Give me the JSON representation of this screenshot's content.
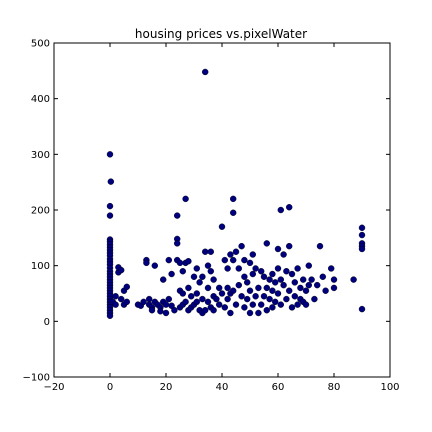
{
  "chart_data": {
    "type": "scatter",
    "title": "housing prices vs.pixelWater",
    "xlabel": "",
    "ylabel": "",
    "xlim": [
      -20,
      100
    ],
    "ylim": [
      -100,
      500
    ],
    "xticks": [
      -20,
      0,
      20,
      40,
      60,
      80,
      100
    ],
    "yticks": [
      -100,
      0,
      100,
      200,
      300,
      400,
      500
    ],
    "grid": false,
    "marker_color": "#00007f",
    "series": [
      {
        "name": "",
        "points": [
          [
            0,
            300
          ],
          [
            0.3,
            251
          ],
          [
            0,
            207
          ],
          [
            0,
            190
          ],
          [
            0,
            147
          ],
          [
            0,
            143
          ],
          [
            0,
            138
          ],
          [
            0,
            133
          ],
          [
            0,
            128
          ],
          [
            0,
            123
          ],
          [
            0,
            118
          ],
          [
            0,
            112
          ],
          [
            0,
            107
          ],
          [
            0,
            102
          ],
          [
            0,
            96
          ],
          [
            0,
            90
          ],
          [
            0,
            85
          ],
          [
            0,
            80
          ],
          [
            0,
            75
          ],
          [
            0,
            70
          ],
          [
            0,
            65
          ],
          [
            0,
            60
          ],
          [
            0,
            55
          ],
          [
            0,
            50
          ],
          [
            0,
            45
          ],
          [
            0,
            40
          ],
          [
            0,
            35
          ],
          [
            0,
            30
          ],
          [
            0,
            25
          ],
          [
            0,
            20
          ],
          [
            0,
            15
          ],
          [
            0,
            10
          ],
          [
            1,
            35
          ],
          [
            2,
            30
          ],
          [
            2,
            45
          ],
          [
            3,
            88
          ],
          [
            3,
            97
          ],
          [
            4,
            92
          ],
          [
            4,
            40
          ],
          [
            5,
            55
          ],
          [
            5,
            30
          ],
          [
            6,
            62
          ],
          [
            6,
            35
          ],
          [
            10,
            30
          ],
          [
            11,
            28
          ],
          [
            12,
            35
          ],
          [
            13,
            110
          ],
          [
            13,
            105
          ],
          [
            14,
            40
          ],
          [
            14,
            30
          ],
          [
            15,
            25
          ],
          [
            15,
            20
          ],
          [
            16,
            100
          ],
          [
            16,
            35
          ],
          [
            17,
            30
          ],
          [
            18,
            25
          ],
          [
            18,
            18
          ],
          [
            19,
            75
          ],
          [
            19,
            35
          ],
          [
            20,
            30
          ],
          [
            20,
            15
          ],
          [
            21,
            110
          ],
          [
            21,
            40
          ],
          [
            22,
            85
          ],
          [
            22,
            28
          ],
          [
            23,
            20
          ],
          [
            24,
            190
          ],
          [
            24,
            148
          ],
          [
            24,
            140
          ],
          [
            24,
            110
          ],
          [
            25,
            105
          ],
          [
            25,
            55
          ],
          [
            25,
            25
          ],
          [
            26,
            90
          ],
          [
            26,
            50
          ],
          [
            26,
            30
          ],
          [
            27,
            220
          ],
          [
            27,
            105
          ],
          [
            27,
            35
          ],
          [
            28,
            108
          ],
          [
            28,
            60
          ],
          [
            28,
            20
          ],
          [
            29,
            45
          ],
          [
            29,
            25
          ],
          [
            30,
            80
          ],
          [
            30,
            30
          ],
          [
            31,
            95
          ],
          [
            31,
            50
          ],
          [
            31,
            35
          ],
          [
            32,
            70
          ],
          [
            32,
            20
          ],
          [
            33,
            80
          ],
          [
            33,
            40
          ],
          [
            33,
            15
          ],
          [
            34,
            448
          ],
          [
            34,
            125
          ],
          [
            34,
            20
          ],
          [
            35,
            100
          ],
          [
            35,
            60
          ],
          [
            35,
            35
          ],
          [
            36,
            125
          ],
          [
            36,
            90
          ],
          [
            36,
            25
          ],
          [
            37,
            75
          ],
          [
            37,
            45
          ],
          [
            37,
            20
          ],
          [
            38,
            40
          ],
          [
            39,
            60
          ],
          [
            39,
            30
          ],
          [
            40,
            170
          ],
          [
            40,
            50
          ],
          [
            41,
            110
          ],
          [
            41,
            25
          ],
          [
            42,
            95
          ],
          [
            42,
            60
          ],
          [
            42,
            40
          ],
          [
            43,
            120
          ],
          [
            43,
            50
          ],
          [
            43,
            15
          ],
          [
            44,
            220
          ],
          [
            44,
            195
          ],
          [
            44,
            110
          ],
          [
            44,
            55
          ],
          [
            45,
            125
          ],
          [
            45,
            30
          ],
          [
            46,
            95
          ],
          [
            46,
            65
          ],
          [
            47,
            135
          ],
          [
            47,
            45
          ],
          [
            48,
            110
          ],
          [
            48,
            80
          ],
          [
            48,
            25
          ],
          [
            49,
            70
          ],
          [
            49,
            40
          ],
          [
            50,
            105
          ],
          [
            50,
            55
          ],
          [
            50,
            15
          ],
          [
            51,
            120
          ],
          [
            51,
            85
          ],
          [
            51,
            30
          ],
          [
            52,
            95
          ],
          [
            52,
            45
          ],
          [
            53,
            60
          ],
          [
            53,
            15
          ],
          [
            54,
            90
          ],
          [
            54,
            30
          ],
          [
            55,
            80
          ],
          [
            55,
            45
          ],
          [
            56,
            140
          ],
          [
            56,
            60
          ],
          [
            56,
            20
          ],
          [
            57,
            75
          ],
          [
            57,
            40
          ],
          [
            58,
            85
          ],
          [
            58,
            55
          ],
          [
            58,
            25
          ],
          [
            59,
            70
          ],
          [
            59,
            35
          ],
          [
            60,
            130
          ],
          [
            60,
            95
          ],
          [
            60,
            50
          ],
          [
            61,
            200
          ],
          [
            61,
            75
          ],
          [
            61,
            30
          ],
          [
            62,
            120
          ],
          [
            62,
            65
          ],
          [
            63,
            90
          ],
          [
            63,
            40
          ],
          [
            64,
            205
          ],
          [
            64,
            135
          ],
          [
            64,
            55
          ],
          [
            65,
            85
          ],
          [
            65,
            25
          ],
          [
            66,
            70
          ],
          [
            66,
            45
          ],
          [
            67,
            95
          ],
          [
            67,
            30
          ],
          [
            68,
            60
          ],
          [
            68,
            40
          ],
          [
            69,
            75
          ],
          [
            69,
            35
          ],
          [
            70,
            55
          ],
          [
            70,
            30
          ],
          [
            71,
            100
          ],
          [
            71,
            65
          ],
          [
            72,
            75
          ],
          [
            73,
            40
          ],
          [
            74,
            65
          ],
          [
            75,
            135
          ],
          [
            76,
            80
          ],
          [
            77,
            55
          ],
          [
            79,
            95
          ],
          [
            80,
            75
          ],
          [
            80,
            60
          ],
          [
            87,
            75
          ],
          [
            90,
            168
          ],
          [
            90,
            155
          ],
          [
            90,
            140
          ],
          [
            90,
            135
          ],
          [
            90,
            130
          ],
          [
            90,
            22
          ]
        ]
      }
    ]
  }
}
